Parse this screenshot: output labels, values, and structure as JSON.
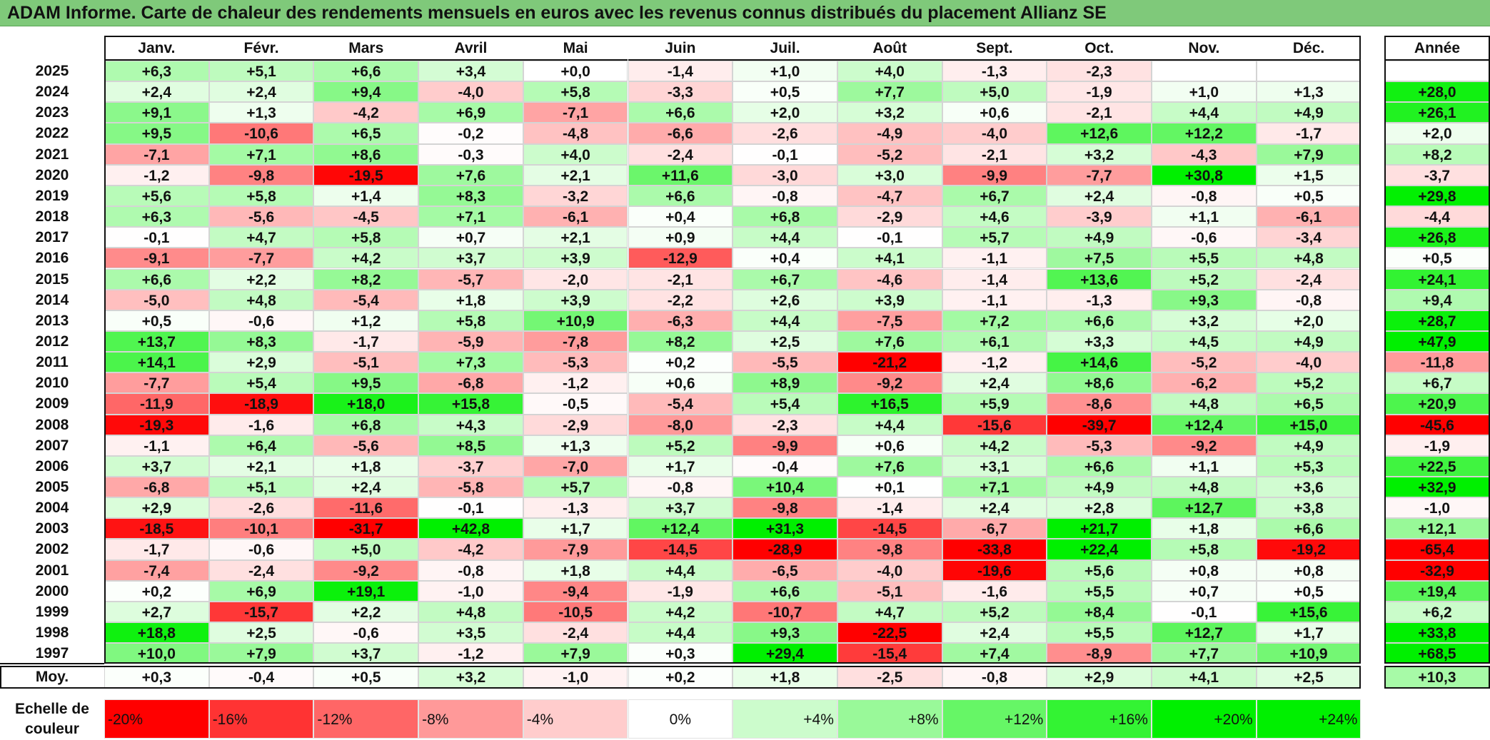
{
  "title": "ADAM Informe. Carte de chaleur des rendements mensuels en euros avec les revenus connus distribués du placement Allianz SE",
  "chart_data": {
    "type": "heatmap",
    "title": "ADAM Informe. Carte de chaleur des rendements mensuels en euros avec les revenus connus distribués du placement Allianz SE",
    "columns": [
      "Janv.",
      "Févr.",
      "Mars",
      "Avril",
      "Mai",
      "Juin",
      "Juil.",
      "Août",
      "Sept.",
      "Oct.",
      "Nov.",
      "Déc."
    ],
    "annual_header": "Année",
    "rows": [
      {
        "year": "2025",
        "values": [
          "+6,3",
          "+5,1",
          "+6,6",
          "+3,4",
          "+0,0",
          "-1,4",
          "+1,0",
          "+4,0",
          "-1,3",
          "-2,3",
          "",
          ""
        ],
        "annual": ""
      },
      {
        "year": "2024",
        "values": [
          "+2,4",
          "+2,4",
          "+9,4",
          "-4,0",
          "+5,8",
          "-3,3",
          "+0,5",
          "+7,7",
          "+5,0",
          "-1,9",
          "+1,0",
          "+1,3"
        ],
        "annual": "+28,0"
      },
      {
        "year": "2023",
        "values": [
          "+9,1",
          "+1,3",
          "-4,2",
          "+6,9",
          "-7,1",
          "+6,6",
          "+2,0",
          "+3,2",
          "+0,6",
          "-2,1",
          "+4,4",
          "+4,9"
        ],
        "annual": "+26,1"
      },
      {
        "year": "2022",
        "values": [
          "+9,5",
          "-10,6",
          "+6,5",
          "-0,2",
          "-4,8",
          "-6,6",
          "-2,6",
          "-4,9",
          "-4,0",
          "+12,6",
          "+12,2",
          "-1,7"
        ],
        "annual": "+2,0"
      },
      {
        "year": "2021",
        "values": [
          "-7,1",
          "+7,1",
          "+8,6",
          "-0,3",
          "+4,0",
          "-2,4",
          "-0,1",
          "-5,2",
          "-2,1",
          "+3,2",
          "-4,3",
          "+7,9"
        ],
        "annual": "+8,2"
      },
      {
        "year": "2020",
        "values": [
          "-1,2",
          "-9,8",
          "-19,5",
          "+7,6",
          "+2,1",
          "+11,6",
          "-3,0",
          "+3,0",
          "-9,9",
          "-7,7",
          "+30,8",
          "+1,5"
        ],
        "annual": "-3,7"
      },
      {
        "year": "2019",
        "values": [
          "+5,6",
          "+5,8",
          "+1,4",
          "+8,3",
          "-3,2",
          "+6,6",
          "-0,8",
          "-4,7",
          "+6,7",
          "+2,4",
          "-0,8",
          "+0,5"
        ],
        "annual": "+29,8"
      },
      {
        "year": "2018",
        "values": [
          "+6,3",
          "-5,6",
          "-4,5",
          "+7,1",
          "-6,1",
          "+0,4",
          "+6,8",
          "-2,9",
          "+4,6",
          "-3,9",
          "+1,1",
          "-6,1"
        ],
        "annual": "-4,4"
      },
      {
        "year": "2017",
        "values": [
          "-0,1",
          "+4,7",
          "+5,8",
          "+0,7",
          "+2,1",
          "+0,9",
          "+4,4",
          "-0,1",
          "+5,7",
          "+4,9",
          "-0,6",
          "-3,4"
        ],
        "annual": "+26,8"
      },
      {
        "year": "2016",
        "values": [
          "-9,1",
          "-7,7",
          "+4,2",
          "+3,7",
          "+3,9",
          "-12,9",
          "+0,4",
          "+4,1",
          "-1,1",
          "+7,5",
          "+5,5",
          "+4,8"
        ],
        "annual": "+0,5"
      },
      {
        "year": "2015",
        "values": [
          "+6,6",
          "+2,2",
          "+8,2",
          "-5,7",
          "-2,0",
          "-2,1",
          "+6,7",
          "-4,6",
          "-1,4",
          "+13,6",
          "+5,2",
          "-2,4"
        ],
        "annual": "+24,1"
      },
      {
        "year": "2014",
        "values": [
          "-5,0",
          "+4,8",
          "-5,4",
          "+1,8",
          "+3,9",
          "-2,2",
          "+2,6",
          "+3,9",
          "-1,1",
          "-1,3",
          "+9,3",
          "-0,8"
        ],
        "annual": "+9,4"
      },
      {
        "year": "2013",
        "values": [
          "+0,5",
          "-0,6",
          "+1,2",
          "+5,8",
          "+10,9",
          "-6,3",
          "+4,4",
          "-7,5",
          "+7,2",
          "+6,6",
          "+3,2",
          "+2,0"
        ],
        "annual": "+28,7"
      },
      {
        "year": "2012",
        "values": [
          "+13,7",
          "+8,3",
          "-1,7",
          "-5,9",
          "-7,8",
          "+8,2",
          "+2,5",
          "+7,6",
          "+6,1",
          "+3,3",
          "+4,5",
          "+4,9"
        ],
        "annual": "+47,9"
      },
      {
        "year": "2011",
        "values": [
          "+14,1",
          "+2,9",
          "-5,1",
          "+7,3",
          "-5,3",
          "+0,2",
          "-5,5",
          "-21,2",
          "-1,2",
          "+14,6",
          "-5,2",
          "-4,0"
        ],
        "annual": "-11,8"
      },
      {
        "year": "2010",
        "values": [
          "-7,7",
          "+5,4",
          "+9,5",
          "-6,8",
          "-1,2",
          "+0,6",
          "+8,9",
          "-9,2",
          "+2,4",
          "+8,6",
          "-6,2",
          "+5,2"
        ],
        "annual": "+6,7"
      },
      {
        "year": "2009",
        "values": [
          "-11,9",
          "-18,9",
          "+18,0",
          "+15,8",
          "-0,5",
          "-5,4",
          "+5,4",
          "+16,5",
          "+5,9",
          "-8,6",
          "+4,8",
          "+6,5"
        ],
        "annual": "+20,9"
      },
      {
        "year": "2008",
        "values": [
          "-19,3",
          "-1,6",
          "+6,8",
          "+4,3",
          "-2,9",
          "-8,0",
          "-2,3",
          "+4,4",
          "-15,6",
          "-39,7",
          "+12,4",
          "+15,0"
        ],
        "annual": "-45,6"
      },
      {
        "year": "2007",
        "values": [
          "-1,1",
          "+6,4",
          "-5,6",
          "+8,5",
          "+1,3",
          "+5,2",
          "-9,9",
          "+0,6",
          "+4,2",
          "-5,3",
          "-9,2",
          "+4,9"
        ],
        "annual": "-1,9"
      },
      {
        "year": "2006",
        "values": [
          "+3,7",
          "+2,1",
          "+1,8",
          "-3,7",
          "-7,0",
          "+1,7",
          "-0,4",
          "+7,6",
          "+3,1",
          "+6,6",
          "+1,1",
          "+5,3"
        ],
        "annual": "+22,5"
      },
      {
        "year": "2005",
        "values": [
          "-6,8",
          "+5,1",
          "+2,4",
          "-5,8",
          "+5,7",
          "-0,8",
          "+10,4",
          "+0,1",
          "+7,1",
          "+4,9",
          "+4,8",
          "+3,6"
        ],
        "annual": "+32,9"
      },
      {
        "year": "2004",
        "values": [
          "+2,9",
          "-2,6",
          "-11,6",
          "-0,1",
          "-1,3",
          "+3,7",
          "-9,8",
          "-1,4",
          "+2,4",
          "+2,8",
          "+12,7",
          "+3,8"
        ],
        "annual": "-1,0"
      },
      {
        "year": "2003",
        "values": [
          "-18,5",
          "-10,1",
          "-31,7",
          "+42,8",
          "+1,7",
          "+12,4",
          "+31,3",
          "-14,5",
          "-6,7",
          "+21,7",
          "+1,8",
          "+6,6"
        ],
        "annual": "+12,1"
      },
      {
        "year": "2002",
        "values": [
          "-1,7",
          "-0,6",
          "+5,0",
          "-4,2",
          "-7,9",
          "-14,5",
          "-28,9",
          "-9,8",
          "-33,8",
          "+22,4",
          "+5,8",
          "-19,2"
        ],
        "annual": "-65,4"
      },
      {
        "year": "2001",
        "values": [
          "-7,4",
          "-2,4",
          "-9,2",
          "-0,8",
          "+1,8",
          "+4,4",
          "-6,5",
          "-4,0",
          "-19,6",
          "+5,6",
          "+0,8",
          "+0,8"
        ],
        "annual": "-32,9"
      },
      {
        "year": "2000",
        "values": [
          "+0,2",
          "+6,9",
          "+19,1",
          "-1,0",
          "-9,4",
          "-1,9",
          "+6,6",
          "-5,1",
          "-1,6",
          "+5,5",
          "+0,7",
          "+0,5"
        ],
        "annual": "+19,4"
      },
      {
        "year": "1999",
        "values": [
          "+2,7",
          "-15,7",
          "+2,2",
          "+4,8",
          "-10,5",
          "+4,2",
          "-10,7",
          "+4,7",
          "+5,2",
          "+8,4",
          "-0,1",
          "+15,6"
        ],
        "annual": "+6,2"
      },
      {
        "year": "1998",
        "values": [
          "+18,8",
          "+2,5",
          "-0,6",
          "+3,5",
          "-2,4",
          "+4,4",
          "+9,3",
          "-22,5",
          "+2,4",
          "+5,5",
          "+12,7",
          "+1,7"
        ],
        "annual": "+33,8"
      },
      {
        "year": "1997",
        "values": [
          "+10,0",
          "+7,9",
          "+3,7",
          "-1,2",
          "+7,9",
          "+0,3",
          "+29,4",
          "-15,4",
          "+7,4",
          "-8,9",
          "+7,7",
          "+10,9"
        ],
        "annual": "+68,5"
      }
    ],
    "average": {
      "label": "Moy.",
      "values": [
        "+0,3",
        "-0,4",
        "+0,5",
        "+3,2",
        "-1,0",
        "+0,2",
        "+1,8",
        "-2,5",
        "-0,8",
        "+2,9",
        "+4,1",
        "+2,5"
      ],
      "annual": "+10,3"
    },
    "scale": {
      "label_line1": "Echelle de",
      "label_line2": "couleur",
      "steps": [
        "-20%",
        "-16%",
        "-12%",
        "-8%",
        "-4%",
        "0%",
        "+4%",
        "+8%",
        "+12%",
        "+16%",
        "+20%",
        "+24%"
      ]
    },
    "colors": {
      "negative_max": "#ff0000",
      "neutral": "#ffffff",
      "positive_max": "#00f000",
      "title_bar": "#7fc97a"
    }
  }
}
